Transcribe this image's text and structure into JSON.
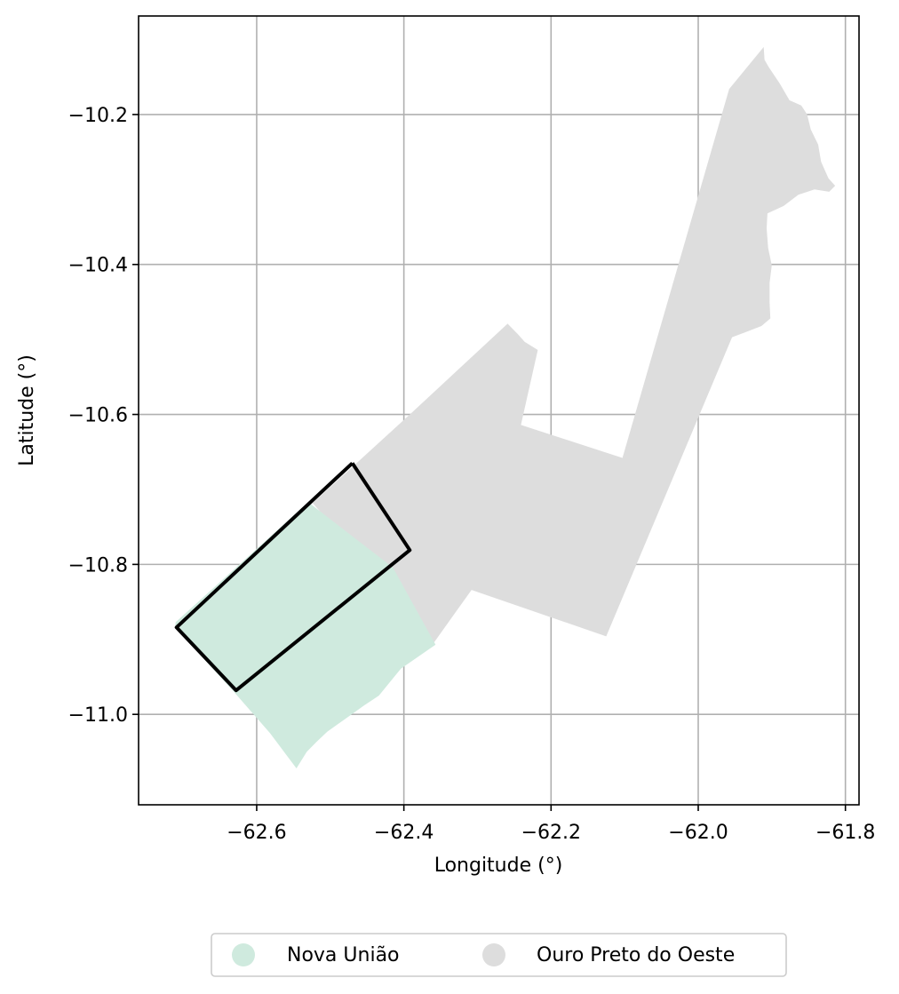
{
  "chart_data": {
    "type": "map",
    "xlabel": "Longitude (°)",
    "ylabel": "Latitude (°)",
    "xlim": [
      -62.7605,
      -61.7815
    ],
    "ylim": [
      -11.1206,
      -10.0686
    ],
    "x_ticks": [
      -62.6,
      -62.4,
      -62.2,
      -62.0,
      -61.8
    ],
    "y_ticks": [
      -10.2,
      -10.4,
      -10.6,
      -10.8,
      -11.0
    ],
    "x_tick_labels": [
      "−62.6",
      "−62.4",
      "−62.2",
      "−62.0",
      "−61.8"
    ],
    "y_tick_labels": [
      "−10.2",
      "−10.4",
      "−10.6",
      "−10.8",
      "−11.0"
    ],
    "grid": true,
    "legend_position": "bottom-center",
    "regions": [
      {
        "name": "Nova União",
        "color": "#cfeade",
        "polygon": [
          [
            -62.71,
            -10.877
          ],
          [
            -62.53,
            -10.717
          ],
          [
            -62.415,
            -10.804
          ],
          [
            -62.357,
            -10.907
          ],
          [
            -62.404,
            -10.939
          ],
          [
            -62.434,
            -10.975
          ],
          [
            -62.454,
            -10.988
          ],
          [
            -62.471,
            -11.0
          ],
          [
            -62.504,
            -11.023
          ],
          [
            -62.519,
            -11.037
          ],
          [
            -62.532,
            -11.05
          ],
          [
            -62.546,
            -11.072
          ],
          [
            -62.582,
            -11.025
          ],
          [
            -62.631,
            -10.97
          ],
          [
            -62.711,
            -10.884
          ]
        ]
      },
      {
        "name": "Ouro Preto do Oeste",
        "color": "#dddddd",
        "polygon": [
          [
            -62.524,
            -10.718
          ],
          [
            -62.461,
            -10.662
          ],
          [
            -62.392,
            -10.6
          ],
          [
            -62.259,
            -10.479
          ],
          [
            -62.245,
            -10.493
          ],
          [
            -62.236,
            -10.503
          ],
          [
            -62.218,
            -10.514
          ],
          [
            -62.241,
            -10.614
          ],
          [
            -62.103,
            -10.658
          ],
          [
            -61.958,
            -10.166
          ],
          [
            -61.911,
            -10.11
          ],
          [
            -61.91,
            -10.127
          ],
          [
            -61.904,
            -10.137
          ],
          [
            -61.889,
            -10.159
          ],
          [
            -61.876,
            -10.181
          ],
          [
            -61.86,
            -10.188
          ],
          [
            -61.852,
            -10.2
          ],
          [
            -61.847,
            -10.22
          ],
          [
            -61.837,
            -10.24
          ],
          [
            -61.833,
            -10.263
          ],
          [
            -61.823,
            -10.285
          ],
          [
            -61.814,
            -10.295
          ],
          [
            -61.822,
            -10.303
          ],
          [
            -61.842,
            -10.3
          ],
          [
            -61.864,
            -10.307
          ],
          [
            -61.884,
            -10.322
          ],
          [
            -61.906,
            -10.332
          ],
          [
            -61.907,
            -10.352
          ],
          [
            -61.905,
            -10.378
          ],
          [
            -61.9,
            -10.401
          ],
          [
            -61.903,
            -10.425
          ],
          [
            -61.903,
            -10.45
          ],
          [
            -61.902,
            -10.472
          ],
          [
            -61.914,
            -10.482
          ],
          [
            -61.935,
            -10.49
          ],
          [
            -61.954,
            -10.497
          ],
          [
            -62.125,
            -10.896
          ],
          [
            -62.308,
            -10.834
          ],
          [
            -62.359,
            -10.904
          ]
        ]
      }
    ],
    "bounding_box": {
      "name": "",
      "color": "#000000",
      "polygon": [
        [
          -62.47,
          -10.665
        ],
        [
          -62.392,
          -10.781
        ],
        [
          -62.628,
          -10.968
        ],
        [
          -62.709,
          -10.884
        ],
        [
          -62.47,
          -10.665
        ]
      ]
    },
    "legend": [
      {
        "label": "Nova União",
        "color": "#cfeade"
      },
      {
        "label": "Ouro Preto do Oeste",
        "color": "#dddddd"
      }
    ]
  }
}
